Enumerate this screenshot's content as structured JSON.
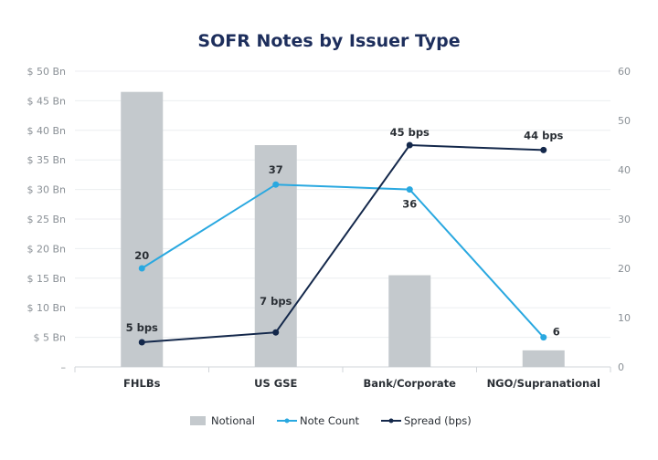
{
  "chart_data": {
    "type": "bar+line",
    "title": "SOFR Notes by Issuer Type",
    "categories": [
      "FHLBs",
      "US GSE",
      "Bank/Corporate",
      "NGO/Supranational"
    ],
    "left_axis": {
      "ylim": [
        0,
        50
      ],
      "ticks": [
        "–",
        "$ 5 Bn",
        "$ 10 Bn",
        "$ 15 Bn",
        "$ 20 Bn",
        "$ 25 Bn",
        "$ 30 Bn",
        "$ 35 Bn",
        "$ 40 Bn",
        "$ 45 Bn",
        "$ 50 Bn"
      ]
    },
    "right_axis": {
      "ylim": [
        0,
        60
      ],
      "ticks": [
        "0",
        "10",
        "20",
        "30",
        "40",
        "50",
        "60"
      ]
    },
    "grid": true,
    "legend_position": "bottom",
    "series": [
      {
        "name": "Notional",
        "type": "bar",
        "axis": "left",
        "values": [
          46.5,
          37.5,
          15.5,
          2.8
        ],
        "color": "#c4c9cd"
      },
      {
        "name": "Note Count",
        "type": "line",
        "axis": "right",
        "values": [
          20,
          37,
          36,
          6
        ],
        "labels": [
          "20",
          "37",
          "36",
          "6"
        ],
        "color": "#29a8e0"
      },
      {
        "name": "Spread (bps)",
        "type": "line",
        "axis": "right",
        "values": [
          5,
          7,
          45,
          44
        ],
        "labels": [
          "5 bps",
          "7 bps",
          "45 bps",
          "44 bps"
        ],
        "color": "#14284b"
      }
    ]
  }
}
